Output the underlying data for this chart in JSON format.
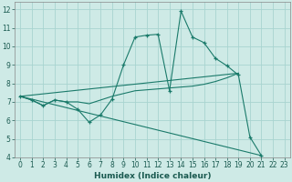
{
  "xlabel": "Humidex (Indice chaleur)",
  "background_color": "#ceeae6",
  "grid_color": "#a8d4d0",
  "line_color": "#1a7a6a",
  "xlim": [
    -0.5,
    23.5
  ],
  "ylim": [
    4,
    12.4
  ],
  "xticks": [
    0,
    1,
    2,
    3,
    4,
    5,
    6,
    7,
    8,
    9,
    10,
    11,
    12,
    13,
    14,
    15,
    16,
    17,
    18,
    19,
    20,
    21,
    22,
    23
  ],
  "yticks": [
    4,
    5,
    6,
    7,
    8,
    9,
    10,
    11,
    12
  ],
  "curve1_x": [
    0,
    1,
    2,
    3,
    4,
    5,
    6,
    7,
    8,
    9,
    10,
    11,
    12,
    13,
    14,
    15,
    16,
    17,
    18,
    19,
    20,
    21
  ],
  "curve1_y": [
    7.3,
    7.1,
    6.8,
    7.1,
    7.0,
    6.6,
    5.9,
    6.3,
    7.15,
    9.0,
    10.5,
    10.6,
    10.65,
    7.6,
    11.9,
    10.5,
    10.2,
    9.35,
    8.95,
    8.45,
    5.1,
    4.1
  ],
  "curve2_x": [
    0,
    1,
    2,
    3,
    4,
    5,
    6,
    7,
    8,
    9,
    10,
    11,
    12,
    13,
    14,
    15,
    16,
    17,
    18,
    19
  ],
  "curve2_y": [
    7.3,
    7.1,
    6.8,
    7.1,
    7.0,
    7.0,
    6.9,
    7.1,
    7.3,
    7.45,
    7.6,
    7.65,
    7.7,
    7.75,
    7.8,
    7.85,
    7.95,
    8.1,
    8.3,
    8.55
  ],
  "curve3_x": [
    0,
    21
  ],
  "curve3_y": [
    7.3,
    4.1
  ],
  "curve4_x": [
    0,
    19
  ],
  "curve4_y": [
    7.3,
    8.55
  ]
}
